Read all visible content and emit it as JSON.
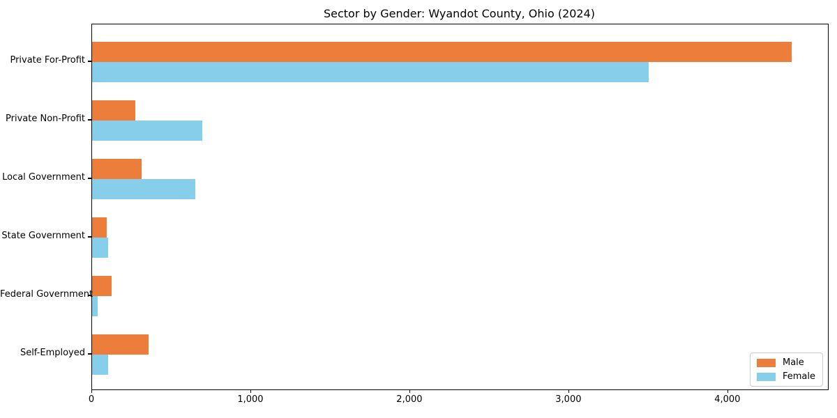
{
  "chart_data": {
    "type": "bar",
    "orientation": "horizontal",
    "title": "Sector by Gender: Wyandot County, Ohio (2024)",
    "categories": [
      "Private For-Profit",
      "Private Non-Profit",
      "Local Government",
      "State Government",
      "Federal Government",
      "Self-Employed"
    ],
    "series": [
      {
        "name": "Male",
        "color": "#ed7d3a",
        "values": [
          4400,
          270,
          310,
          90,
          125,
          355
        ]
      },
      {
        "name": "Female",
        "color": "#87ceeb",
        "values": [
          3500,
          695,
          650,
          100,
          35,
          100
        ]
      }
    ],
    "xlabel": "",
    "ylabel": "",
    "xlim": [
      0,
      4628
    ],
    "x_ticks": [
      {
        "value": 0,
        "label": "0"
      },
      {
        "value": 1000,
        "label": "1,000"
      },
      {
        "value": 2000,
        "label": "2,000"
      },
      {
        "value": 3000,
        "label": "3,000"
      },
      {
        "value": 4000,
        "label": "4,000"
      }
    ],
    "grid": false,
    "legend": {
      "position": "lower right"
    }
  }
}
